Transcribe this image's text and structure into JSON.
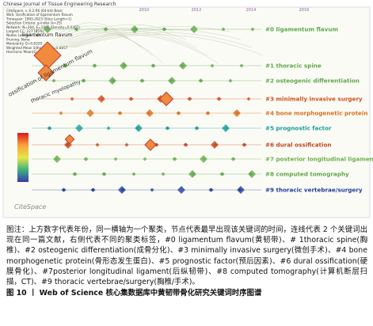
{
  "header": {
    "text": "Chinese Journal of Tissue Engineering Research"
  },
  "figure": {
    "info_lines": [
      "CiteSpace, v. 6.2.R6 (64-bit) Basic",
      "WoS: Ossification of ligamentum flavum",
      "Timespan: 1993-2023 (Slice Length=1)",
      "Selection Criteria: g-index (k=25)",
      "Network: N=264, E=1066 (Density=0.0307)",
      "Largest CC: 227 (85%)",
      "Nodes Labeled: 1.0%",
      "Pruning: None",
      "Modularity Q=0.6329",
      "Weighted Mean Silhouette S=0.8857",
      "Harmonic Mean(Q, S)=0.7383"
    ],
    "years": [
      "2010",
      "2012",
      "2014",
      "2016"
    ],
    "clusters": [
      "#0 ligamentum flavum",
      "#1 thoracic spine",
      "#2 osteogenic differentiation",
      "#3 minimally invasive surgery",
      "#4 bone morphogenetic protein",
      "#5 prognostic factor",
      "#6 dural ossification",
      "#7 posterior longitudinal ligament",
      "#8 computed tomography",
      "#9 thoracic vertebrae/surgery"
    ],
    "cluster_colors": [
      "#5fa84a",
      "#5fa84a",
      "#5fa84a",
      "#d2501f",
      "#d9701e",
      "#1a9e96",
      "#c2461c",
      "#6db04c",
      "#5fa84a",
      "#1f3f9c"
    ],
    "keywords": [
      "ligamentum flavum",
      "ossification of ligamentum flavum",
      "thoracic myelopathy"
    ],
    "logo": "CiteSpace"
  },
  "caption": {
    "note": "图注：上方数字代表年份，同一横轴为一个聚类，节点代表最早出现该关键词的时间，连线代表 2 个关键词出现在同一篇文献，右侧代表不同的聚类标签，#0 ligamentum flavum(黄韧带)、# 1thoracic spine(胸椎)、#2 osteogenic differentiation(成骨分化)、#3 minimally invasive surgery(微创手术)、#4 bone morphogenetic protein(骨形态发生蛋白)、#5 prognostic factor(预后因素)、#6 dural ossification(硬膜骨化)、#7posterior longitudinal ligament(后纵韧带)、#8 computed tomography(计算机断层扫描，CT)、#9 thoracic vertebrae/surgery(胸椎/手术)。",
    "title": "图 10 丨 Web of Science 核心集数据库中黄韧带骨化研究关键词时序图谱"
  }
}
